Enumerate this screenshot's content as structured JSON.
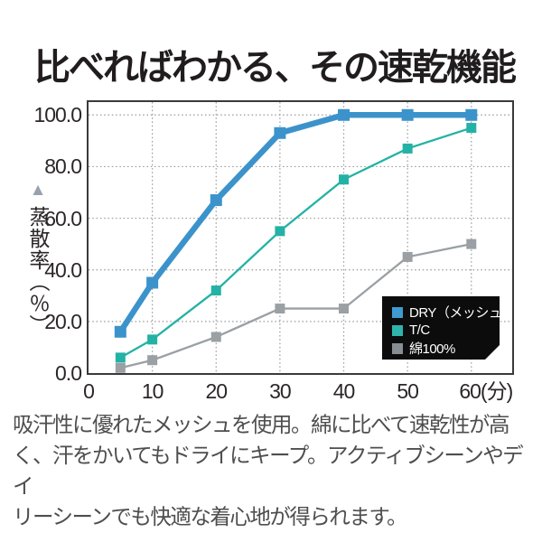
{
  "title": "比べればわかる、その速乾機能",
  "y_axis_title": {
    "arrow": "▲",
    "text": "蒸散率（％）"
  },
  "chart_data": {
    "type": "line",
    "title": "比べればわかる、その速乾機能",
    "xlabel": "分",
    "ylabel": "蒸散率（％）",
    "x": [
      5,
      10,
      20,
      30,
      40,
      50,
      60
    ],
    "series": [
      {
        "name": "DRY（メッシュ）",
        "color": "#3c93cb",
        "line_width": 6.5,
        "marker_size": 13,
        "values": [
          16,
          35,
          67,
          93,
          100,
          100,
          100
        ]
      },
      {
        "name": "T/C",
        "color": "#23b2a5",
        "line_width": 2.3,
        "marker_size": 11,
        "values": [
          6,
          13,
          32,
          55,
          75,
          87,
          95
        ]
      },
      {
        "name": "綿100%",
        "color": "#9aa0a3",
        "line_width": 2.3,
        "marker_size": 11,
        "values": [
          2,
          5,
          14,
          25,
          25,
          45,
          50
        ]
      }
    ],
    "x_ticks": [
      {
        "v": 0,
        "label": "0",
        "offset": 0
      },
      {
        "v": 10,
        "label": "10",
        "offset": 0
      },
      {
        "v": 20,
        "label": "20",
        "offset": 0
      },
      {
        "v": 30,
        "label": "30",
        "offset": 0
      },
      {
        "v": 40,
        "label": "40",
        "offset": 0
      },
      {
        "v": 50,
        "label": "50",
        "offset": 0
      },
      {
        "v": 60,
        "label": "60(分)",
        "offset": 16
      }
    ],
    "y_ticks": [
      {
        "v": 0,
        "label": "0.0"
      },
      {
        "v": 20,
        "label": "20.0"
      },
      {
        "v": 40,
        "label": "40.0"
      },
      {
        "v": 60,
        "label": "60.0"
      },
      {
        "v": 80,
        "label": "80.0"
      },
      {
        "v": 100,
        "label": "100.0"
      }
    ],
    "xlim": [
      0,
      66.4
    ],
    "ylim": [
      0,
      105
    ],
    "grid": "dotted",
    "grid_color": "#999999",
    "axis_color": "#3a3a3a",
    "legend_position": "inside-bottom-right"
  },
  "legend": {
    "bg": "#0c0c0c",
    "text_color": "#ffffff",
    "items": [
      {
        "label": "DRY（メッシュ）",
        "color": "#3f9ad1"
      },
      {
        "label": "T/C",
        "color": "#2eb4ab"
      },
      {
        "label": "綿100%",
        "color": "#878e93"
      }
    ]
  },
  "caption_lines": [
    "吸汗性に優れたメッシュを使用。綿に比べて速乾性が高",
    "く、汗をかいてもドライにキープ。アクティブシーンやデイ",
    "リーシーンでも快適な着心地が得られます。"
  ]
}
